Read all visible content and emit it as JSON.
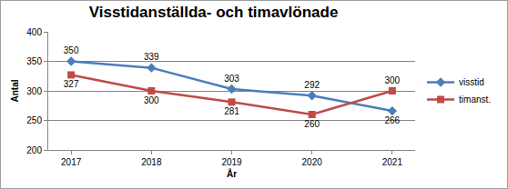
{
  "chart_data": {
    "type": "line",
    "title": "Visstidanställda- och timavlönade",
    "x_label": "År",
    "y_label": "Antal",
    "categories": [
      "2017",
      "2018",
      "2019",
      "2020",
      "2021"
    ],
    "series": [
      {
        "name": "visstid",
        "color": "#4a7ebb",
        "marker": "diamond",
        "values": [
          350,
          339,
          303,
          292,
          266
        ]
      },
      {
        "name": "timanst.",
        "color": "#be4b48",
        "marker": "square",
        "values": [
          327,
          300,
          281,
          260,
          300
        ]
      }
    ],
    "ylim": [
      200,
      400
    ],
    "yticks": [
      200,
      250,
      300,
      350,
      400
    ],
    "grid": true,
    "legend": "right",
    "data_labels": true
  }
}
